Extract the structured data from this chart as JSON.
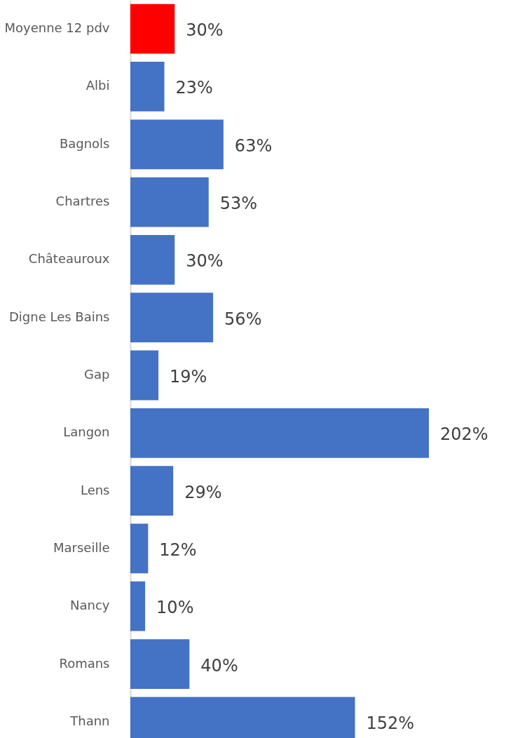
{
  "chart_data": {
    "type": "bar",
    "orientation": "horizontal",
    "categories": [
      "Moyenne 12 pdv",
      "Albi",
      "Bagnols",
      "Chartres",
      "Châteauroux",
      "Digne Les Bains",
      "Gap",
      "Langon",
      "Lens",
      "Marseille",
      "Nancy",
      "Romans",
      "Thann"
    ],
    "values": [
      30,
      23,
      63,
      53,
      30,
      56,
      19,
      202,
      29,
      12,
      10,
      40,
      152
    ],
    "colors": [
      "#ff0000",
      "#4472c4",
      "#4472c4",
      "#4472c4",
      "#4472c4",
      "#4472c4",
      "#4472c4",
      "#4472c4",
      "#4472c4",
      "#4472c4",
      "#4472c4",
      "#4472c4",
      "#4472c4"
    ],
    "value_labels": [
      "30%",
      "23%",
      "63%",
      "53%",
      "30%",
      "56%",
      "19%",
      "202%",
      "29%",
      "12%",
      "10%",
      "40%",
      "152%"
    ]
  }
}
